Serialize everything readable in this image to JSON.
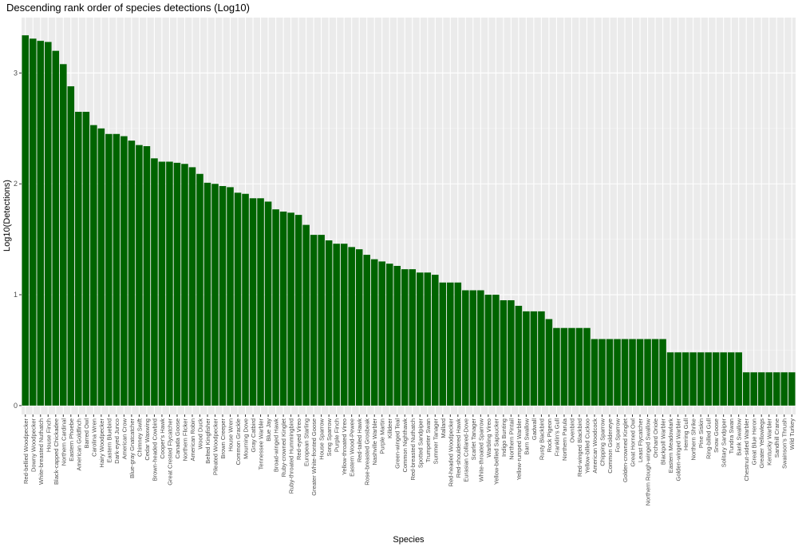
{
  "chart_data": {
    "type": "bar",
    "title": "Descending rank order of species detections (Log10)",
    "xlabel": "Species",
    "ylabel": "Log10(Detections)",
    "ylim": [
      -0.08,
      3.5
    ],
    "y_ticks": [
      0,
      1,
      2,
      3
    ],
    "y_tick_labels": [
      "0",
      "1",
      "2",
      "3"
    ],
    "grid": true,
    "bar_color": "#006400",
    "panel_background": "#ebebeb",
    "categories": [
      "Red-bellied Woodpecker",
      "Downy Woodpecker",
      "White-breasted Nuthatch",
      "House Finch",
      "Black-capped Chickadee",
      "Northern Cardinal",
      "Eastern Phoebe",
      "American Goldfinch",
      "Barred Owl",
      "Carolina Wren",
      "Hairy Woodpecker",
      "Eastern Bluebird",
      "Dark-eyed Junco",
      "American Crow",
      "Blue-gray Gnatcatcher",
      "Chimney Swift",
      "Cedar Waxwing",
      "Brown-headed Cowbird",
      "Cooper's Hawk",
      "Great Crested Flycatcher",
      "Canada Goose",
      "Northern Flicker",
      "American Robin",
      "Wood Duck",
      "Belted Kingfisher",
      "Pileated Woodpecker",
      "Brown Creeper",
      "House Wren",
      "Common Grackle",
      "Mourning Dove",
      "Gray Catbird",
      "Tennessee Warbler",
      "Blue Jay",
      "Broad-winged Hawk",
      "Ruby-crowned Kinglet",
      "Ruby-throated Hummingbird",
      "Red-eyed Vireo",
      "European Starling",
      "Greater White-fronted Goose",
      "House Sparrow",
      "Song Sparrow",
      "Purple Finch",
      "Yellow-throated Vireo",
      "Eastern Wood-Pewee",
      "Red-tailed Hawk",
      "Rose-breasted Grosbeak",
      "Nashville Warbler",
      "Purple Martin",
      "Killdeer",
      "Green-winged Teal",
      "Common Nighthawk",
      "Red-breasted Nuthatch",
      "Spotted Sandpiper",
      "Trumpeter Swan",
      "Summer Tanager",
      "Mallard",
      "Red-headed Woodpecker",
      "Red-shouldered Hawk",
      "Eurasian Collared-Dove",
      "Scarlet Tanager",
      "White-throated Sparrow",
      "Warbling Vireo",
      "Yellow-bellied Sapsucker",
      "Indigo Bunting",
      "Northern Pintail",
      "Yellow-rumped Warbler",
      "Barn Swallow",
      "Gadwall",
      "Rusty Blackbird",
      "Rock Pigeon",
      "Franklin's Gull",
      "Northern Parula",
      "Ovenbird",
      "Red-winged Blackbird",
      "Yellow-billed Cuckoo",
      "American Woodcock",
      "Chipping Sparrow",
      "Common Goldeneye",
      "Fox Sparrow",
      "Golden-crowned Kinglet",
      "Great Horned Owl",
      "Least Flycatcher",
      "Northern Rough-winged Swallow",
      "Orchard Oriole",
      "Blackpoll Warbler",
      "Eastern Meadowlark",
      "Golden-winged Warbler",
      "Herring Gull",
      "Northern Shrike",
      "Pine Siskin",
      "Ring-billed Gull",
      "Snow Goose",
      "Solitary Sandpiper",
      "Tundra Swan",
      "Bank Swallow",
      "Chestnut-sided Warbler",
      "Great Blue Heron",
      "Greater Yellowlegs",
      "Kentucky Warbler",
      "Sandhill Crane",
      "Swainson's Thrush",
      "Wild Turkey"
    ],
    "values": [
      3.34,
      3.31,
      3.29,
      3.28,
      3.2,
      3.08,
      2.88,
      2.65,
      2.65,
      2.53,
      2.5,
      2.45,
      2.45,
      2.43,
      2.39,
      2.35,
      2.34,
      2.23,
      2.2,
      2.2,
      2.19,
      2.18,
      2.15,
      2.09,
      2.01,
      2.0,
      1.98,
      1.97,
      1.92,
      1.91,
      1.87,
      1.87,
      1.84,
      1.77,
      1.75,
      1.74,
      1.72,
      1.63,
      1.54,
      1.54,
      1.49,
      1.46,
      1.46,
      1.43,
      1.41,
      1.36,
      1.32,
      1.3,
      1.28,
      1.26,
      1.23,
      1.23,
      1.2,
      1.2,
      1.18,
      1.11,
      1.11,
      1.11,
      1.04,
      1.04,
      1.04,
      1.0,
      1.0,
      0.95,
      0.95,
      0.9,
      0.85,
      0.85,
      0.85,
      0.78,
      0.7,
      0.7,
      0.7,
      0.7,
      0.7,
      0.6,
      0.6,
      0.6,
      0.6,
      0.6,
      0.6,
      0.6,
      0.6,
      0.6,
      0.6,
      0.48,
      0.48,
      0.48,
      0.48,
      0.48,
      0.48,
      0.48,
      0.48,
      0.48,
      0.48,
      0.3,
      0.3,
      0.3,
      0.3,
      0.3,
      0.3,
      0.3
    ]
  }
}
